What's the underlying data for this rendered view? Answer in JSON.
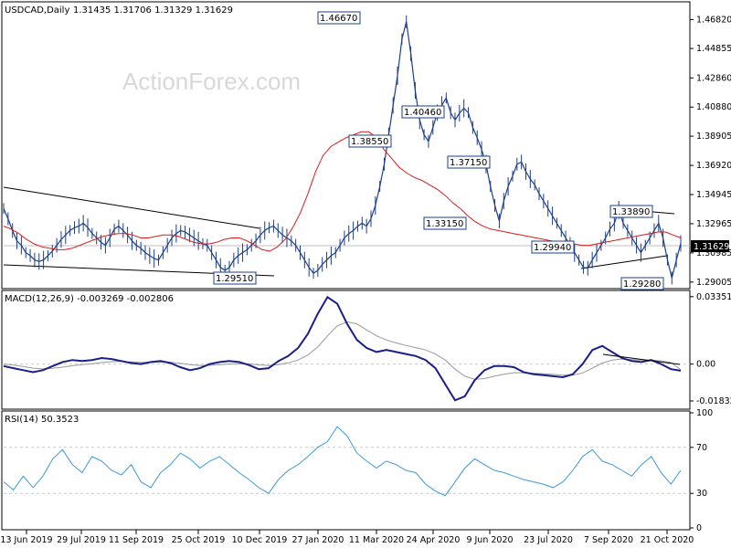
{
  "header": {
    "symbol": "USDCAD,Daily",
    "ohlc": "1.31435 1.31706 1.31329 1.31629",
    "watermark": "ActionForex.com"
  },
  "current_price_label": "1.31629",
  "colors": {
    "price": "#1c3f8c",
    "ma": "#d81c1c",
    "trendline": "#000000",
    "macd": "#1a1f8a",
    "signal": "#999999",
    "rsi": "#3a9ad9",
    "grid": "#c9c9c9",
    "current_tag": "#000000"
  },
  "chart_data": [
    {
      "type": "line",
      "name": "price",
      "title": "USDCAD,Daily",
      "y_ticks": [
        "1.46820",
        "1.44855",
        "1.42860",
        "1.40880",
        "1.38905",
        "1.36920",
        "1.34945",
        "1.32965",
        "1.30985",
        "1.29005"
      ],
      "ylim": [
        1.2856,
        1.4765
      ],
      "x_ticks": [
        "13 Jun 2019",
        "29 Jul 2019",
        "11 Sep 2019",
        "25 Oct 2019",
        "10 Dec 2019",
        "27 Jan 2020",
        "11 Mar 2020",
        "24 Apr 2020",
        "9 Jun 2020",
        "23 Jul 2020",
        "7 Sep 2020",
        "21 Oct 2020"
      ],
      "series": [
        {
          "name": "Price",
          "values": [
            1.34,
            1.333,
            1.325,
            1.318,
            1.315,
            1.31,
            1.308,
            1.305,
            1.304,
            1.305,
            1.308,
            1.311,
            1.315,
            1.319,
            1.322,
            1.325,
            1.327,
            1.328,
            1.33,
            1.327,
            1.323,
            1.32,
            1.317,
            1.315,
            1.32,
            1.326,
            1.328,
            1.325,
            1.322,
            1.318,
            1.315,
            1.313,
            1.31,
            1.308,
            1.306,
            1.305,
            1.31,
            1.315,
            1.32,
            1.323,
            1.325,
            1.324,
            1.322,
            1.32,
            1.318,
            1.316,
            1.315,
            1.31,
            1.305,
            1.3,
            1.298,
            1.3,
            1.305,
            1.308,
            1.31,
            1.312,
            1.315,
            1.318,
            1.322,
            1.325,
            1.327,
            1.328,
            1.325,
            1.322,
            1.32,
            1.318,
            1.315,
            1.31,
            1.305,
            1.3,
            1.296,
            1.298,
            1.302,
            1.305,
            1.308,
            1.31,
            1.315,
            1.32,
            1.323,
            1.325,
            1.328,
            1.33,
            1.328,
            1.333,
            1.342,
            1.355,
            1.37,
            1.39,
            1.41,
            1.43,
            1.455,
            1.4667,
            1.445,
            1.42,
            1.4,
            1.39,
            1.3855,
            1.395,
            1.405,
            1.41,
            1.415,
            1.405,
            1.4,
            1.4046,
            1.408,
            1.405,
            1.395,
            1.388,
            1.38,
            1.37,
            1.355,
            1.342,
            1.3315,
            1.345,
            1.355,
            1.362,
            1.37,
            1.3715,
            1.365,
            1.36,
            1.356,
            1.35,
            1.345,
            1.34,
            1.335,
            1.33,
            1.325,
            1.32,
            1.315,
            1.31,
            1.305,
            1.3,
            1.2994,
            1.305,
            1.31,
            1.315,
            1.32,
            1.326,
            1.33,
            1.3389,
            1.33,
            1.325,
            1.32,
            1.315,
            1.31,
            1.315,
            1.32,
            1.325,
            1.33,
            1.32,
            1.305,
            1.2928,
            1.305,
            1.3163
          ]
        },
        {
          "name": "MA",
          "values": [
            1.328,
            1.326,
            1.323,
            1.319,
            1.316,
            1.314,
            1.313,
            1.312,
            1.312,
            1.313,
            1.315,
            1.317,
            1.319,
            1.321,
            1.322,
            1.323,
            1.323,
            1.322,
            1.32,
            1.32,
            1.321,
            1.322,
            1.322,
            1.321,
            1.319,
            1.317,
            1.316,
            1.316,
            1.317,
            1.319,
            1.32,
            1.32,
            1.318,
            1.315,
            1.312,
            1.311,
            1.314,
            1.319,
            1.327,
            1.337,
            1.35,
            1.365,
            1.376,
            1.382,
            1.385,
            1.388,
            1.39,
            1.392,
            1.392,
            1.388,
            1.38,
            1.374,
            1.368,
            1.364,
            1.361,
            1.359,
            1.356,
            1.353,
            1.349,
            1.344,
            1.34,
            1.335,
            1.331,
            1.328,
            1.326,
            1.325,
            1.324,
            1.323,
            1.322,
            1.321,
            1.32,
            1.319,
            1.318,
            1.317,
            1.316,
            1.316,
            1.315,
            1.315,
            1.316,
            1.317,
            1.318,
            1.319,
            1.32,
            1.321,
            1.322,
            1.323,
            1.324,
            1.324,
            1.322,
            1.32
          ]
        }
      ],
      "annotations": [
        "1.46670",
        "1.38550",
        "1.40460",
        "1.37150",
        "1.33150",
        "1.29510",
        "1.29940",
        "1.33890",
        "1.29280"
      ]
    },
    {
      "type": "line",
      "title": "MACD(12,26,9) -0.003269 -0.002806",
      "y_ticks": [
        "0.033515",
        "0.00",
        "-0.018324"
      ],
      "ylim": [
        -0.0215,
        0.0348
      ],
      "series": [
        {
          "name": "MACD",
          "values": [
            -0.001,
            -0.002,
            -0.003,
            -0.004,
            -0.003,
            -0.001,
            0.001,
            0.002,
            0.0015,
            0.002,
            0.003,
            0.0025,
            0.0015,
            0.0005,
            0.0,
            0.001,
            0.0015,
            0.0005,
            -0.0015,
            -0.003,
            -0.002,
            0.0,
            0.001,
            0.0015,
            0.001,
            -0.0005,
            -0.0025,
            -0.002,
            0.0015,
            0.004,
            0.008,
            0.015,
            0.025,
            0.0333,
            0.03,
            0.02,
            0.012,
            0.008,
            0.006,
            0.007,
            0.006,
            0.005,
            0.004,
            0.002,
            -0.002,
            -0.01,
            -0.018,
            -0.016,
            -0.008,
            -0.003,
            -0.001,
            -0.001,
            -0.0015,
            -0.004,
            -0.005,
            -0.0055,
            -0.006,
            -0.0065,
            -0.005,
            0.0,
            0.007,
            0.009,
            0.006,
            0.003,
            0.0015,
            0.001,
            0.002,
            0.0,
            -0.0025,
            -0.0033
          ]
        },
        {
          "name": "Signal",
          "values": [
            0.0,
            -0.0005,
            -0.0012,
            -0.002,
            -0.0024,
            -0.0021,
            -0.0015,
            -0.0008,
            -0.0003,
            0.0002,
            0.0008,
            0.0012,
            0.0013,
            0.0011,
            0.0009,
            0.0009,
            0.001,
            0.0009,
            0.0004,
            -0.0003,
            -0.0007,
            -0.0006,
            -0.0003,
            0.0,
            0.0002,
            0.0001,
            -0.0004,
            -0.0007,
            -0.0003,
            0.0006,
            0.002,
            0.0045,
            0.0085,
            0.014,
            0.019,
            0.021,
            0.02,
            0.017,
            0.014,
            0.012,
            0.0105,
            0.0093,
            0.0082,
            0.007,
            0.005,
            0.002,
            -0.0025,
            -0.006,
            -0.0075,
            -0.0072,
            -0.006,
            -0.005,
            -0.0043,
            -0.0043,
            -0.0045,
            -0.0048,
            -0.0051,
            -0.0055,
            -0.0055,
            -0.0044,
            -0.002,
            0.0005,
            0.002,
            0.0025,
            0.0023,
            0.002,
            0.002,
            0.0016,
            0.0008,
            -0.0028
          ]
        }
      ]
    },
    {
      "type": "line",
      "title": "RSI(14) 50.3523",
      "y_ticks": [
        "100",
        "70",
        "30",
        "0"
      ],
      "ylim": [
        0,
        100
      ],
      "levels": [
        70,
        30
      ],
      "series": [
        {
          "name": "RSI",
          "values": [
            40,
            33,
            45,
            35,
            45,
            60,
            68,
            55,
            48,
            62,
            58,
            50,
            46,
            55,
            40,
            35,
            48,
            55,
            65,
            60,
            52,
            58,
            62,
            55,
            48,
            42,
            35,
            30,
            42,
            50,
            55,
            62,
            70,
            75,
            88,
            80,
            65,
            58,
            52,
            58,
            55,
            50,
            48,
            38,
            32,
            28,
            40,
            52,
            60,
            55,
            50,
            48,
            45,
            42,
            40,
            38,
            35,
            40,
            50,
            62,
            68,
            58,
            55,
            50,
            45,
            55,
            62,
            48,
            38,
            50
          ]
        }
      ]
    }
  ]
}
